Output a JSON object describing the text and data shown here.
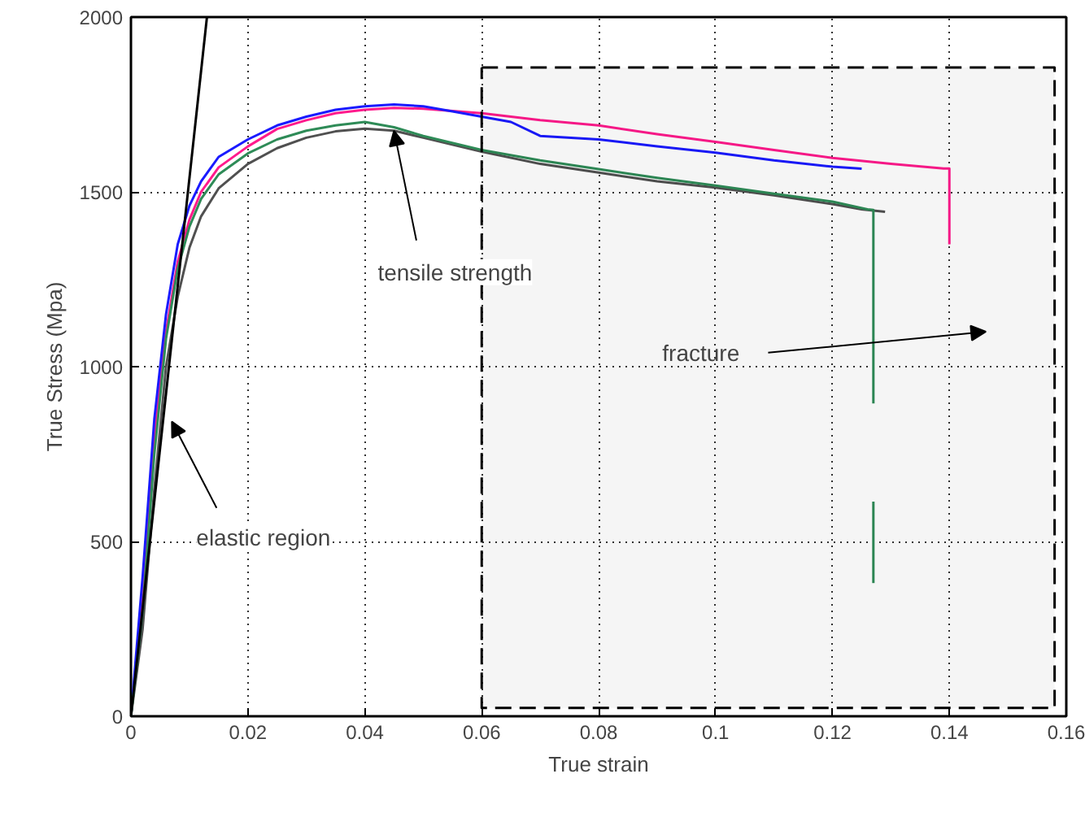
{
  "chart_data": {
    "type": "line",
    "xlabel": "True strain",
    "ylabel": "True Stress (Mpa)",
    "xlim": [
      0,
      0.16
    ],
    "ylim": [
      0,
      2000
    ],
    "xticks": [
      0,
      0.02,
      0.04,
      0.06,
      0.08,
      0.1,
      0.12,
      0.14,
      0.16
    ],
    "yticks": [
      0,
      500,
      1000,
      1500,
      2000
    ],
    "grid": true,
    "marker": "none",
    "series": [
      {
        "color": "#ff1a8c",
        "x": [
          0,
          0.002,
          0.004,
          0.006,
          0.008,
          0.01,
          0.012,
          0.015,
          0.02,
          0.025,
          0.03,
          0.035,
          0.04,
          0.045,
          0.05,
          0.06,
          0.07,
          0.08,
          0.09,
          0.1,
          0.11,
          0.12,
          0.13,
          0.139,
          0.14,
          0.14
        ],
        "values": [
          0,
          350,
          800,
          1100,
          1300,
          1420,
          1500,
          1570,
          1630,
          1680,
          1705,
          1725,
          1735,
          1740,
          1738,
          1725,
          1705,
          1690,
          1665,
          1643,
          1620,
          1597,
          1580,
          1567,
          1567,
          1350
        ]
      },
      {
        "color": "#1a1aff",
        "x": [
          0,
          0.002,
          0.004,
          0.006,
          0.008,
          0.01,
          0.012,
          0.015,
          0.02,
          0.025,
          0.03,
          0.035,
          0.04,
          0.045,
          0.05,
          0.055,
          0.06,
          0.065,
          0.07,
          0.08,
          0.09,
          0.1,
          0.11,
          0.12,
          0.125
        ],
        "values": [
          0,
          400,
          850,
          1150,
          1350,
          1460,
          1530,
          1600,
          1650,
          1690,
          1715,
          1735,
          1745,
          1750,
          1745,
          1730,
          1715,
          1700,
          1660,
          1650,
          1630,
          1612,
          1590,
          1572,
          1566
        ]
      },
      {
        "color": "#505050",
        "x": [
          0,
          0.002,
          0.004,
          0.006,
          0.008,
          0.01,
          0.012,
          0.015,
          0.02,
          0.025,
          0.03,
          0.035,
          0.04,
          0.045,
          0.05,
          0.06,
          0.07,
          0.08,
          0.09,
          0.1,
          0.11,
          0.12,
          0.125,
          0.129
        ],
        "values": [
          0,
          250,
          650,
          1000,
          1200,
          1340,
          1430,
          1510,
          1580,
          1625,
          1655,
          1673,
          1681,
          1675,
          1655,
          1615,
          1580,
          1555,
          1530,
          1512,
          1490,
          1465,
          1450,
          1443
        ]
      },
      {
        "color": "#2e8b57",
        "x": [
          0,
          0.002,
          0.004,
          0.006,
          0.008,
          0.01,
          0.012,
          0.015,
          0.02,
          0.025,
          0.03,
          0.035,
          0.04,
          0.045,
          0.05,
          0.06,
          0.07,
          0.08,
          0.09,
          0.1,
          0.11,
          0.12,
          0.126,
          0.127,
          0.127
        ],
        "values": [
          0,
          300,
          750,
          1080,
          1280,
          1400,
          1480,
          1550,
          1610,
          1650,
          1675,
          1690,
          1700,
          1685,
          1660,
          1620,
          1590,
          1565,
          1540,
          1518,
          1495,
          1472,
          1450,
          1448,
          895
        ]
      },
      {
        "color": "#2e8b57",
        "x": [
          0.127,
          0.127
        ],
        "values": [
          614,
          381
        ]
      },
      {
        "color": "#000000",
        "x": [
          0,
          0.013
        ],
        "values": [
          0,
          2000
        ]
      }
    ],
    "bands": [
      {
        "axis": "x",
        "from": 0.06,
        "to": 0.158,
        "label": "fracture",
        "color": "#000000"
      }
    ],
    "annotations": [
      {
        "text": "elastic region",
        "x": 0.007,
        "y": 843
      },
      {
        "text": "tensile strength",
        "x": 0.045,
        "y": 1675
      }
    ]
  }
}
